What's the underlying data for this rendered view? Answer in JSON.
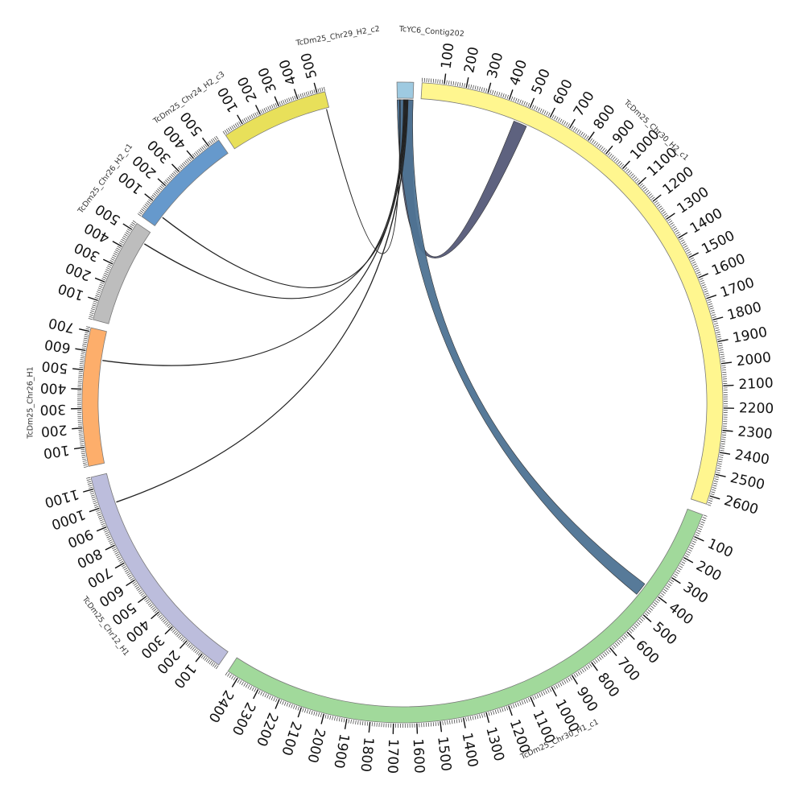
{
  "chart_data": {
    "type": "circos",
    "unit_label": "",
    "sequences": [
      {
        "name": "TcYC6_Contig202",
        "length": 50,
        "color": "#9ecae1"
      },
      {
        "name": "TcDm25_Chr30_H2_c1",
        "length": 2640,
        "color": "#fff68f"
      },
      {
        "name": "TcDm25_Chr30_H1_c1",
        "length": 2450,
        "color": "#a1d99b"
      },
      {
        "name": "TcDm25_Chr12_H1",
        "length": 1160,
        "color": "#bcbddc"
      },
      {
        "name": "TcDm25_Chr26_H1",
        "length": 720,
        "color": "#fdae6b"
      },
      {
        "name": "TcDm25_Chr26_H2_c1",
        "length": 540,
        "color": "#bdbdbd"
      },
      {
        "name": "TcDm25_Chr24_H2_c3",
        "length": 560,
        "color": "#6699cc"
      },
      {
        "name": "TcDm25_Chr29_H2_c2",
        "length": 540,
        "color": "#e8e05a"
      }
    ],
    "links": [
      {
        "from": "TcYC6_Contig202",
        "from_range": [
          0,
          50
        ],
        "to": "TcDm25_Chr30_H2_c1",
        "to_range": [
          455,
          520
        ],
        "color": "#555a78"
      },
      {
        "from": "TcYC6_Contig202",
        "from_range": [
          0,
          50
        ],
        "to": "TcDm25_Chr30_H1_c1",
        "to_range": [
          390,
          450
        ],
        "color": "#4e7394"
      },
      {
        "from": "TcYC6_Contig202",
        "from_range": [
          20,
          22
        ],
        "to": "TcDm25_Chr26_H2_c1",
        "to_range": [
          470,
          472
        ],
        "color": "#222222"
      },
      {
        "from": "TcYC6_Contig202",
        "from_range": [
          24,
          26
        ],
        "to": "TcDm25_Chr24_H2_c3",
        "to_range": [
          60,
          62
        ],
        "color": "#222222"
      },
      {
        "from": "TcYC6_Contig202",
        "from_range": [
          28,
          30
        ],
        "to": "TcDm25_Chr26_H1",
        "to_range": [
          560,
          562
        ],
        "color": "#222222"
      },
      {
        "from": "TcYC6_Contig202",
        "from_range": [
          32,
          34
        ],
        "to": "TcDm25_Chr12_H1",
        "to_range": [
          1000,
          1002
        ],
        "color": "#222222"
      },
      {
        "from": "TcYC6_Contig202",
        "from_range": [
          8,
          9
        ],
        "to": "TcDm25_Chr29_H2_c2",
        "to_range": [
          525,
          526
        ],
        "color": "#222222"
      }
    ]
  }
}
